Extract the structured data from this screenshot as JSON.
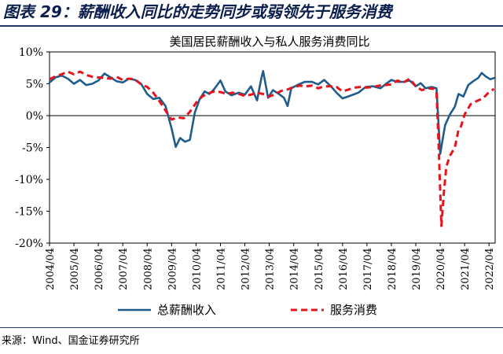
{
  "figure": {
    "caption": "图表 29：薪酬收入同比的走势同步或弱领先于服务消费",
    "source": "来源：Wind、国金证券研究所"
  },
  "chart_data": {
    "type": "line",
    "title": "美国居民薪酬收入与私人服务消费同比",
    "xlabel": "",
    "ylabel": "",
    "ylim": [
      -20,
      10
    ],
    "xlim": [
      2004.25,
      2022.5
    ],
    "yticks": [
      10,
      5,
      0,
      -5,
      -10,
      -15,
      -20
    ],
    "ytick_labels": [
      "10%",
      "5%",
      "0%",
      "-5%",
      "-10%",
      "-15%",
      "-20%"
    ],
    "xticks": [
      "2004/04",
      "2005/04",
      "2006/04",
      "2007/04",
      "2008/04",
      "2009/04",
      "2010/04",
      "2011/04",
      "2012/04",
      "2013/04",
      "2014/04",
      "2015/04",
      "2016/04",
      "2017/04",
      "2018/04",
      "2019/04",
      "2020/04",
      "2021/04",
      "2022/04"
    ],
    "grid": false,
    "legend_position": "bottom",
    "series": [
      {
        "name": "总薪酬收入",
        "color": "#1f5c8b",
        "style": "solid",
        "points": [
          [
            2004.25,
            5.2
          ],
          [
            2004.5,
            6.0
          ],
          [
            2004.75,
            6.3
          ],
          [
            2005.0,
            5.8
          ],
          [
            2005.25,
            5.0
          ],
          [
            2005.5,
            5.6
          ],
          [
            2005.75,
            4.8
          ],
          [
            2006.0,
            5.0
          ],
          [
            2006.25,
            5.5
          ],
          [
            2006.5,
            6.6
          ],
          [
            2006.75,
            6.0
          ],
          [
            2007.0,
            5.4
          ],
          [
            2007.25,
            5.2
          ],
          [
            2007.5,
            5.8
          ],
          [
            2007.75,
            5.6
          ],
          [
            2008.0,
            5.0
          ],
          [
            2008.25,
            3.4
          ],
          [
            2008.5,
            2.6
          ],
          [
            2008.75,
            2.8
          ],
          [
            2009.0,
            1.5
          ],
          [
            2009.25,
            -2.0
          ],
          [
            2009.42,
            -4.9
          ],
          [
            2009.6,
            -3.5
          ],
          [
            2009.8,
            -4.1
          ],
          [
            2010.0,
            -3.8
          ],
          [
            2010.2,
            0.5
          ],
          [
            2010.4,
            2.6
          ],
          [
            2010.6,
            3.8
          ],
          [
            2010.8,
            3.4
          ],
          [
            2011.0,
            4.2
          ],
          [
            2011.25,
            5.5
          ],
          [
            2011.45,
            3.8
          ],
          [
            2011.7,
            3.2
          ],
          [
            2012.0,
            3.6
          ],
          [
            2012.25,
            3.3
          ],
          [
            2012.5,
            4.6
          ],
          [
            2012.75,
            2.4
          ],
          [
            2012.92,
            5.8
          ],
          [
            2013.0,
            7.0
          ],
          [
            2013.2,
            2.8
          ],
          [
            2013.4,
            4.0
          ],
          [
            2013.65,
            3.4
          ],
          [
            2013.85,
            2.8
          ],
          [
            2014.0,
            1.5
          ],
          [
            2014.15,
            4.3
          ],
          [
            2014.4,
            4.8
          ],
          [
            2014.7,
            5.3
          ],
          [
            2015.0,
            5.3
          ],
          [
            2015.25,
            4.9
          ],
          [
            2015.5,
            5.6
          ],
          [
            2015.8,
            4.5
          ],
          [
            2016.0,
            3.6
          ],
          [
            2016.25,
            2.7
          ],
          [
            2016.55,
            3.1
          ],
          [
            2016.9,
            3.6
          ],
          [
            2017.2,
            4.5
          ],
          [
            2017.5,
            4.6
          ],
          [
            2017.8,
            4.3
          ],
          [
            2018.0,
            4.9
          ],
          [
            2018.25,
            5.6
          ],
          [
            2018.5,
            5.3
          ],
          [
            2018.75,
            5.3
          ],
          [
            2019.0,
            5.5
          ],
          [
            2019.25,
            4.6
          ],
          [
            2019.45,
            5.1
          ],
          [
            2019.65,
            4.3
          ],
          [
            2019.9,
            4.5
          ],
          [
            2020.1,
            4.3
          ],
          [
            2020.25,
            -6.0
          ],
          [
            2020.45,
            -1.5
          ],
          [
            2020.65,
            0.2
          ],
          [
            2020.85,
            1.4
          ],
          [
            2021.0,
            3.4
          ],
          [
            2021.2,
            3.0
          ],
          [
            2021.4,
            4.8
          ],
          [
            2021.6,
            5.4
          ],
          [
            2021.8,
            5.9
          ],
          [
            2021.95,
            6.7
          ],
          [
            2022.1,
            6.2
          ],
          [
            2022.3,
            5.7
          ],
          [
            2022.45,
            5.9
          ]
        ]
      },
      {
        "name": "服务消费",
        "color": "#e8141c",
        "style": "dashed",
        "points": [
          [
            2004.25,
            5.7
          ],
          [
            2004.5,
            6.2
          ],
          [
            2004.75,
            6.5
          ],
          [
            2005.0,
            6.9
          ],
          [
            2005.25,
            6.5
          ],
          [
            2005.5,
            6.9
          ],
          [
            2005.75,
            6.4
          ],
          [
            2006.0,
            6.1
          ],
          [
            2006.25,
            6.0
          ],
          [
            2006.5,
            5.9
          ],
          [
            2006.75,
            5.8
          ],
          [
            2007.0,
            6.1
          ],
          [
            2007.25,
            5.6
          ],
          [
            2007.5,
            5.8
          ],
          [
            2007.75,
            5.7
          ],
          [
            2008.0,
            4.9
          ],
          [
            2008.25,
            4.5
          ],
          [
            2008.5,
            3.6
          ],
          [
            2008.75,
            2.3
          ],
          [
            2009.0,
            0.8
          ],
          [
            2009.25,
            -0.6
          ],
          [
            2009.5,
            -0.3
          ],
          [
            2009.75,
            -0.4
          ],
          [
            2010.0,
            0.6
          ],
          [
            2010.25,
            2.0
          ],
          [
            2010.5,
            3.0
          ],
          [
            2010.75,
            3.5
          ],
          [
            2011.0,
            3.8
          ],
          [
            2011.25,
            3.7
          ],
          [
            2011.5,
            3.4
          ],
          [
            2011.75,
            3.6
          ],
          [
            2012.0,
            3.4
          ],
          [
            2012.25,
            3.1
          ],
          [
            2012.5,
            3.3
          ],
          [
            2012.75,
            3.6
          ],
          [
            2013.0,
            3.4
          ],
          [
            2013.25,
            3.0
          ],
          [
            2013.5,
            3.4
          ],
          [
            2013.75,
            3.9
          ],
          [
            2014.0,
            4.1
          ],
          [
            2014.25,
            4.5
          ],
          [
            2014.5,
            4.7
          ],
          [
            2014.75,
            4.6
          ],
          [
            2015.0,
            4.7
          ],
          [
            2015.25,
            4.3
          ],
          [
            2015.5,
            4.6
          ],
          [
            2015.75,
            4.6
          ],
          [
            2016.0,
            4.5
          ],
          [
            2016.25,
            3.8
          ],
          [
            2016.5,
            4.1
          ],
          [
            2016.75,
            4.4
          ],
          [
            2017.0,
            4.5
          ],
          [
            2017.25,
            4.4
          ],
          [
            2017.5,
            4.5
          ],
          [
            2017.75,
            4.7
          ],
          [
            2018.0,
            4.8
          ],
          [
            2018.25,
            4.9
          ],
          [
            2018.5,
            5.5
          ],
          [
            2018.75,
            5.2
          ],
          [
            2019.0,
            5.8
          ],
          [
            2019.25,
            4.6
          ],
          [
            2019.5,
            4.0
          ],
          [
            2019.75,
            4.3
          ],
          [
            2020.0,
            4.2
          ],
          [
            2020.1,
            3.8
          ],
          [
            2020.2,
            -6.0
          ],
          [
            2020.3,
            -17.3
          ],
          [
            2020.4,
            -12.0
          ],
          [
            2020.5,
            -8.0
          ],
          [
            2020.65,
            -6.3
          ],
          [
            2020.85,
            -5.0
          ],
          [
            2021.0,
            -2.2
          ],
          [
            2021.1,
            -1.7
          ],
          [
            2021.25,
            0.2
          ],
          [
            2021.5,
            1.8
          ],
          [
            2021.75,
            2.3
          ],
          [
            2022.0,
            2.7
          ],
          [
            2022.2,
            3.5
          ],
          [
            2022.45,
            4.2
          ]
        ]
      }
    ]
  }
}
